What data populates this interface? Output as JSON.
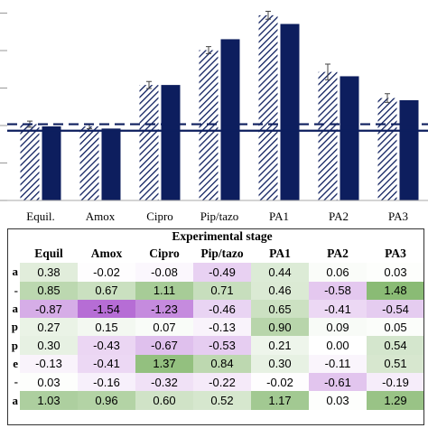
{
  "chart_data": [
    {
      "type": "bar",
      "categories": [
        "Equil.",
        "Amox",
        "Cipro",
        "Pip/tazo",
        "PA1",
        "PA2",
        "PA3"
      ],
      "series": [
        {
          "values": [
            1.75,
            1.7,
            2.65,
            3.45,
            4.25,
            2.95,
            2.35
          ],
          "errors": [
            0.07,
            0.05,
            0.08,
            0.08,
            0.09,
            0.18,
            0.1
          ],
          "pattern": "hatched"
        },
        {
          "values": [
            1.7,
            1.65,
            2.65,
            3.7,
            4.05,
            2.85,
            2.3
          ],
          "pattern": "solid",
          "color": "#0d1e5e"
        }
      ],
      "reference_lines": [
        {
          "style": "dashed",
          "value": 1.75
        },
        {
          "style": "solid",
          "value": 1.6
        }
      ],
      "ylim": [
        0,
        4.6
      ],
      "grid": false
    },
    {
      "type": "table",
      "title": "Experimental stage",
      "columns": [
        "Equil",
        "Amox",
        "Cipro",
        "Pip/tazo",
        "PA1",
        "PA2",
        "PA3"
      ],
      "rows": [
        {
          "label": "a",
          "values": [
            0.38,
            -0.02,
            -0.08,
            -0.49,
            0.44,
            0.06,
            0.03
          ],
          "display": [
            "0.38",
            "-0.02",
            "-0.08",
            "-0.49",
            "0.44",
            "0.06",
            "0.03"
          ]
        },
        {
          "label": "-",
          "values": [
            0.85,
            0.67,
            1.11,
            0.71,
            0.46,
            -0.58,
            1.48
          ],
          "display": [
            "0.85",
            "0.67",
            "1.11",
            "0.71",
            "0.46",
            "-0.58",
            "1.48"
          ]
        },
        {
          "label": "a",
          "values": [
            -0.87,
            -1.54,
            -1.23,
            -0.46,
            0.65,
            -0.41,
            -0.54
          ],
          "display": [
            "-0.87",
            "-1.54",
            "-1.23",
            "-0.46",
            "0.65",
            "-0.41",
            "-0.54"
          ]
        },
        {
          "label": "p",
          "values": [
            0.27,
            0.15,
            0.07,
            -0.13,
            0.9,
            0.09,
            0.05
          ],
          "display": [
            "0.27",
            "0.15",
            "0.07",
            "-0.13",
            "0.90",
            "0.09",
            "0.05"
          ]
        },
        {
          "label": "p",
          "values": [
            0.3,
            -0.43,
            -0.67,
            -0.53,
            0.21,
            0.0,
            0.54
          ],
          "display": [
            "0.30",
            "-0.43",
            "-0.67",
            "-0.53",
            "0.21",
            "0.00",
            "0.54"
          ]
        },
        {
          "label": "e",
          "values": [
            -0.13,
            -0.41,
            1.37,
            0.84,
            0.3,
            -0.11,
            0.51
          ],
          "display": [
            "-0.13",
            "-0.41",
            "1.37",
            "0.84",
            "0.30",
            "-0.11",
            "0.51"
          ]
        },
        {
          "label": "-",
          "values": [
            0.03,
            -0.16,
            -0.32,
            -0.22,
            -0.02,
            -0.61,
            -0.19
          ],
          "display": [
            "0.03",
            "-0.16",
            "-0.32",
            "-0.22",
            "-0.02",
            "-0.61",
            "-0.19"
          ]
        },
        {
          "label": "a",
          "values": [
            1.03,
            0.96,
            0.6,
            0.52,
            1.17,
            0.03,
            1.29
          ],
          "display": [
            "1.03",
            "0.96",
            "0.60",
            "0.52",
            "1.17",
            "0.03",
            "1.29"
          ]
        }
      ],
      "colors": {
        "positive": "#6aa84f",
        "negative": "#a64dcc"
      }
    }
  ]
}
